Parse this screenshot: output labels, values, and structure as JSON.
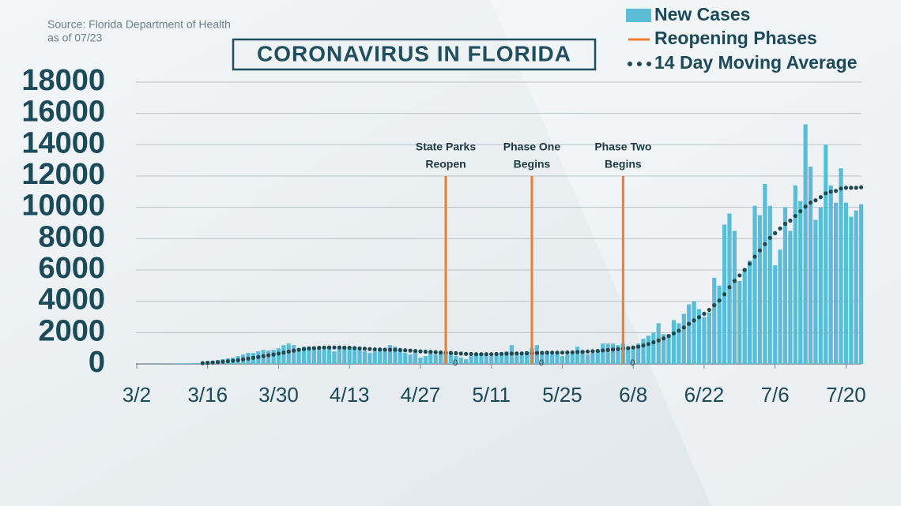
{
  "chart_data": {
    "type": "bar",
    "title": "CORONAVIRUS IN FLORIDA",
    "source": [
      "Source: Florida Department of Health",
      "as of 07/23"
    ],
    "categories": [
      "3/2",
      null,
      null,
      null,
      null,
      null,
      null,
      null,
      null,
      null,
      null,
      null,
      null,
      null,
      "3/16",
      null,
      null,
      null,
      null,
      null,
      null,
      null,
      null,
      null,
      null,
      null,
      null,
      null,
      "3/30",
      null,
      null,
      null,
      null,
      null,
      null,
      null,
      null,
      null,
      null,
      null,
      null,
      null,
      "4/13",
      null,
      null,
      null,
      null,
      null,
      null,
      null,
      null,
      null,
      null,
      null,
      null,
      null,
      "4/27",
      null,
      null,
      null,
      null,
      null,
      null,
      null,
      null,
      null,
      null,
      null,
      null,
      null,
      "5/11",
      null,
      null,
      null,
      null,
      null,
      null,
      null,
      null,
      null,
      null,
      null,
      null,
      null,
      "5/25",
      null,
      null,
      null,
      null,
      null,
      null,
      null,
      null,
      null,
      null,
      null,
      null,
      null,
      "6/8",
      null,
      null,
      null,
      null,
      null,
      null,
      null,
      null,
      null,
      null,
      null,
      null,
      null,
      "6/22",
      null,
      null,
      null,
      null,
      null,
      null,
      null,
      null,
      null,
      null,
      null,
      null,
      null,
      "7/6",
      null,
      null,
      null,
      null,
      null,
      null,
      null,
      null,
      null,
      null,
      null,
      null,
      null,
      "7/20",
      null,
      null,
      null
    ],
    "series": [
      {
        "name": "New Cases",
        "color": "#5bbcd8",
        "values": [
          2,
          3,
          5,
          6,
          8,
          10,
          15,
          20,
          25,
          30,
          40,
          50,
          60,
          100,
          150,
          200,
          250,
          300,
          350,
          400,
          500,
          600,
          700,
          700,
          800,
          900,
          850,
          900,
          1000,
          1200,
          1300,
          1200,
          1000,
          1100,
          1100,
          1000,
          1000,
          900,
          1100,
          800,
          1000,
          1100,
          1000,
          1100,
          900,
          800,
          700,
          800,
          900,
          1000,
          1200,
          1100,
          900,
          700,
          600,
          800,
          400,
          500,
          800,
          600,
          700,
          700,
          600,
          500,
          400,
          300,
          500,
          600,
          700,
          600,
          500,
          600,
          700,
          800,
          1200,
          700,
          600,
          800,
          1000,
          1200,
          700,
          800,
          600,
          700,
          500,
          600,
          700,
          1100,
          800,
          600,
          700,
          900,
          1300,
          1300,
          1300,
          1200,
          1300,
          1000,
          1100,
          1300,
          1600,
          1800,
          2000,
          2600,
          1900,
          1900,
          2800,
          2600,
          3200,
          3800,
          4000,
          3500,
          3000,
          3300,
          5500,
          5000,
          8900,
          9600,
          8500,
          5300,
          6100,
          6600,
          10100,
          9500,
          11500,
          10100,
          6300,
          7300,
          10000,
          8500,
          11400,
          10400,
          15300,
          12600,
          9200,
          10000,
          14000,
          11400,
          10300,
          12500,
          10300,
          9400,
          9800,
          10200
        ]
      },
      {
        "name": "14 Day Moving Average",
        "color": "#1d4a52",
        "values": [
          null,
          null,
          null,
          null,
          null,
          null,
          null,
          null,
          null,
          null,
          null,
          null,
          null,
          50,
          70,
          90,
          110,
          140,
          170,
          200,
          240,
          290,
          340,
          390,
          440,
          500,
          550,
          600,
          660,
          720,
          790,
          850,
          900,
          950,
          990,
          1010,
          1030,
          1040,
          1050,
          1050,
          1050,
          1040,
          1030,
          1010,
          990,
          970,
          950,
          930,
          920,
          910,
          900,
          900,
          890,
          870,
          850,
          830,
          800,
          780,
          770,
          750,
          730,
          720,
          700,
          680,
          660,
          640,
          630,
          620,
          620,
          620,
          620,
          630,
          640,
          650,
          660,
          670,
          670,
          680,
          690,
          700,
          710,
          720,
          720,
          720,
          720,
          730,
          740,
          760,
          770,
          790,
          810,
          830,
          860,
          890,
          920,
          950,
          980,
          1010,
          1050,
          1100,
          1180,
          1270,
          1380,
          1500,
          1630,
          1780,
          1950,
          2120,
          2330,
          2560,
          2780,
          2980,
          3200,
          3450,
          3750,
          4050,
          4450,
          4900,
          5300,
          5650,
          6000,
          6400,
          6850,
          7250,
          7650,
          8050,
          8350,
          8650,
          8950,
          9150,
          9450,
          9750,
          10050,
          10300,
          10450,
          10650,
          10900,
          11000,
          11050,
          11200,
          11250,
          11250,
          11250,
          11280
        ]
      }
    ],
    "phases": {
      "name": "Reopening Phases",
      "color": "#ec7d31",
      "lines": [
        {
          "label": [
            "State Parks",
            "Reopen"
          ],
          "x": 61,
          "top": 12000,
          "marker": 0
        },
        {
          "label": [
            "Phase One",
            "Begins"
          ],
          "x": 78,
          "top": 12000,
          "marker": 0
        },
        {
          "label": [
            "Phase Two",
            "Begins"
          ],
          "x": 96,
          "top": 12000,
          "marker": 0
        }
      ]
    },
    "ylim": [
      0,
      18000
    ],
    "yticks": [
      0,
      2000,
      4000,
      6000,
      8000,
      10000,
      12000,
      14000,
      16000,
      18000
    ],
    "grid": true,
    "legend": "top-right"
  }
}
